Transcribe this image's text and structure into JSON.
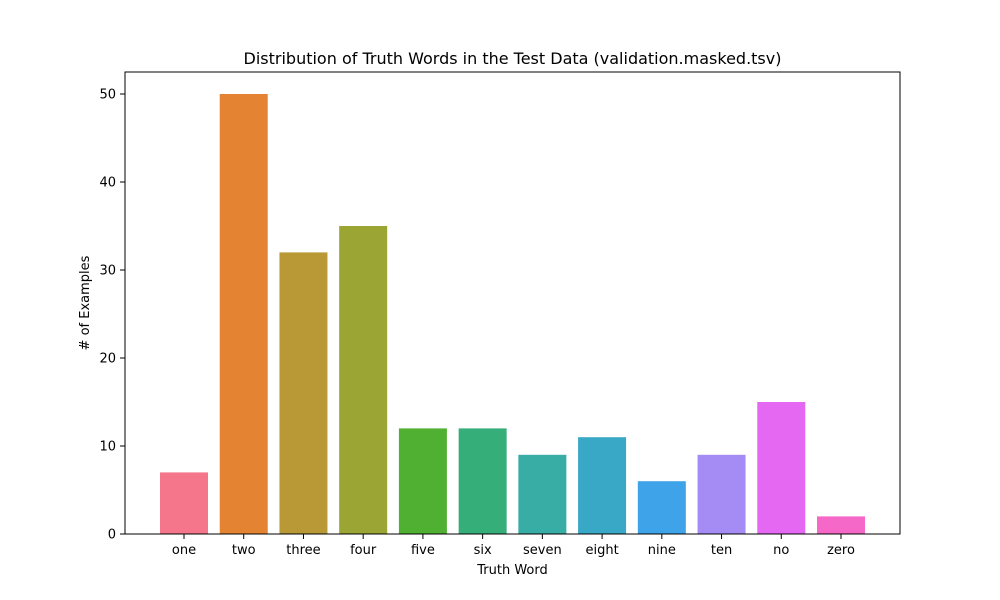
{
  "chart_data": {
    "type": "bar",
    "title": "Distribution of Truth Words in the Test Data (validation.masked.tsv)",
    "xlabel": "Truth Word",
    "ylabel": "# of Examples",
    "categories": [
      "one",
      "two",
      "three",
      "four",
      "five",
      "six",
      "seven",
      "eight",
      "nine",
      "ten",
      "no",
      "zero"
    ],
    "values": [
      7,
      50,
      32,
      35,
      12,
      12,
      9,
      11,
      6,
      9,
      15,
      2
    ],
    "colors": [
      "#f5758b",
      "#e48433",
      "#b99936",
      "#9aa534",
      "#50b032",
      "#35ae7a",
      "#37ada6",
      "#39a7c6",
      "#3ea3e9",
      "#a48cf4",
      "#e568f3",
      "#f568c7"
    ],
    "ylim": [
      0,
      52.5
    ],
    "yticks": [
      0,
      10,
      20,
      30,
      40,
      50
    ],
    "grid": false,
    "legend": "none"
  }
}
